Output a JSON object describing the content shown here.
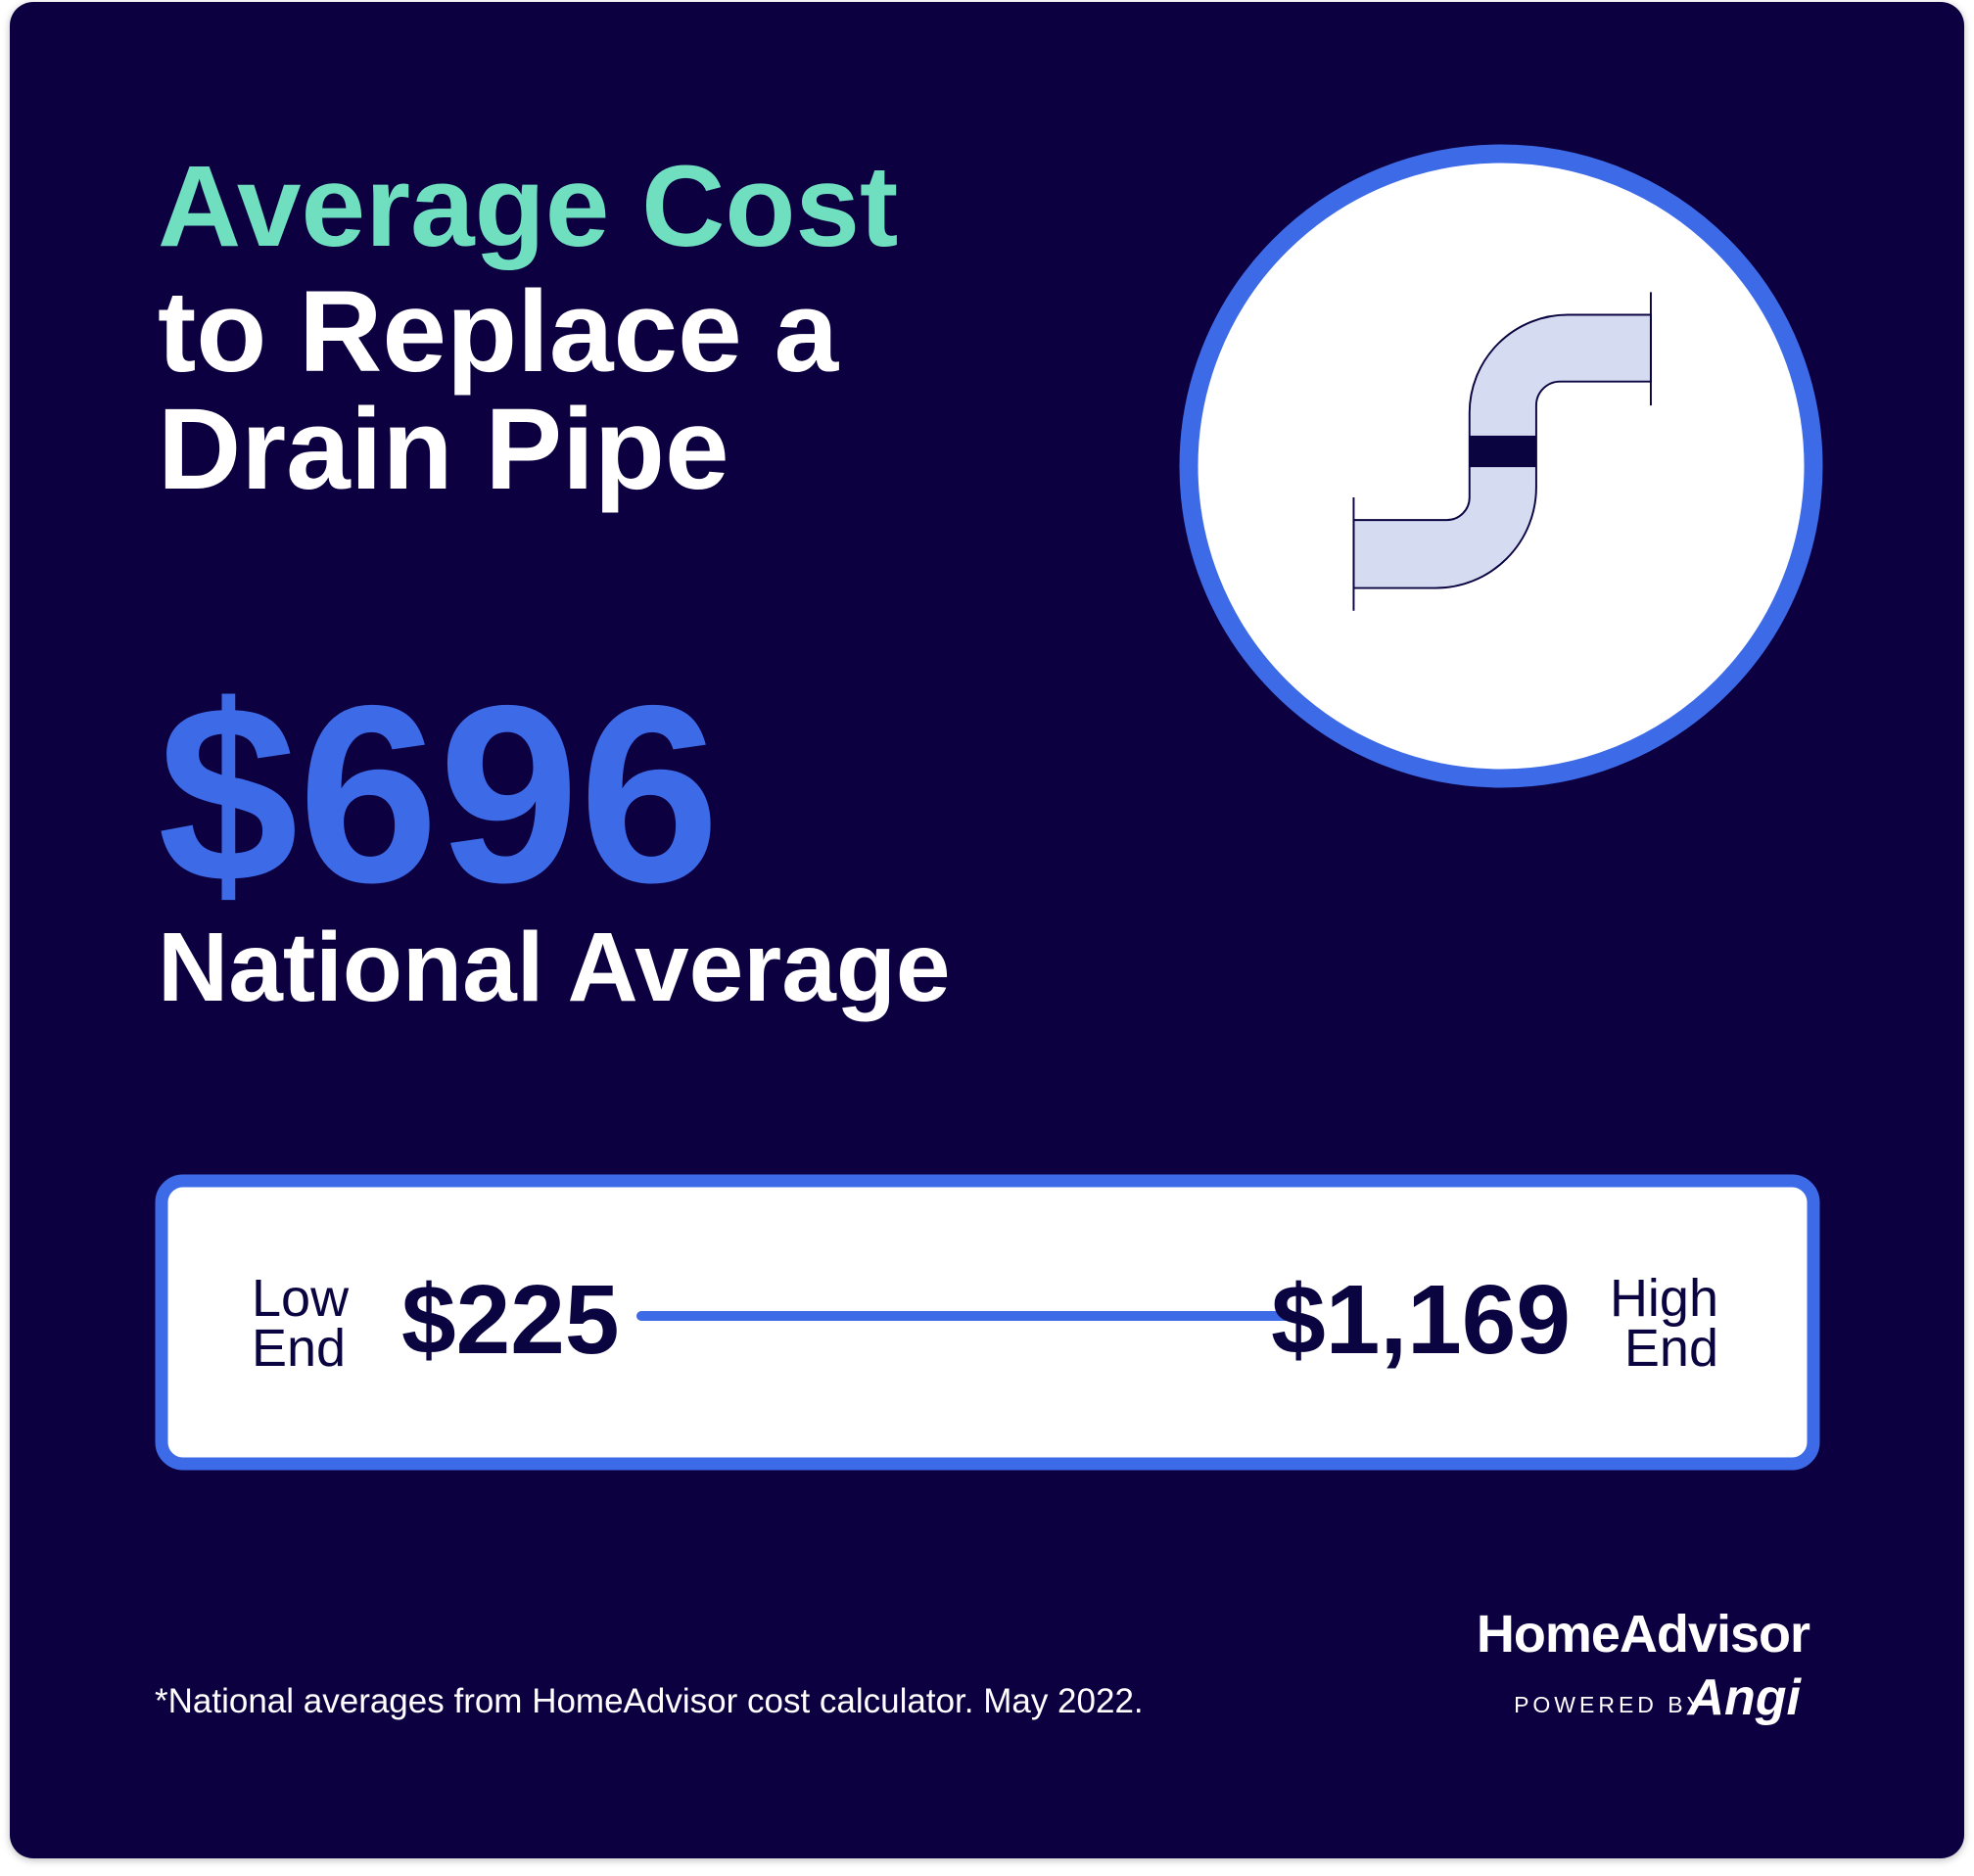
{
  "title": {
    "lines": [
      "Average Cost",
      "to Replace a",
      "Drain Pipe"
    ]
  },
  "average": {
    "amount": "$696",
    "label": "National Average"
  },
  "range": {
    "low_label": [
      "Low",
      "End"
    ],
    "low_value": "$225",
    "high_value": "$1,169",
    "high_label": [
      "High",
      "End"
    ]
  },
  "footnote": "*National averages from HomeAdvisor cost calculator. May 2022.",
  "brand": {
    "name": "HomeAdvisor",
    "powered_by": "POWERED BY",
    "partner": "Angi"
  }
}
